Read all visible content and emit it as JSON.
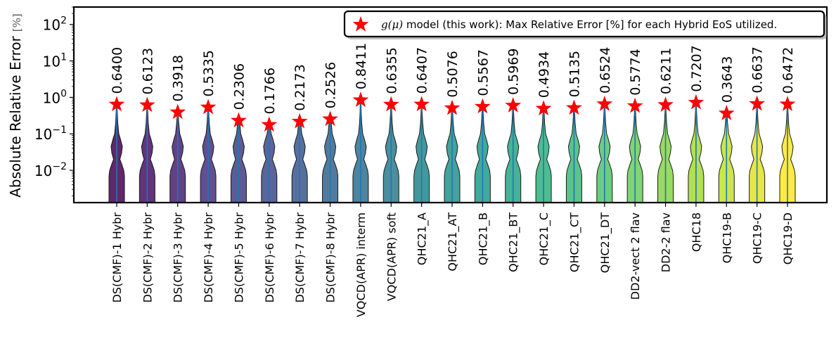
{
  "chart_data": {
    "type": "violin",
    "ylabel": "Absolute Relative Error",
    "ylabel_unit": "[%]",
    "yscale": "log",
    "ylim": [
      0.0013,
      300
    ],
    "y_ticks": [
      {
        "value": 0.01,
        "base": "10",
        "exp": "−2"
      },
      {
        "value": 0.1,
        "base": "10",
        "exp": "−1"
      },
      {
        "value": 1,
        "base": "10",
        "exp": "0"
      },
      {
        "value": 10,
        "base": "10",
        "exp": "1"
      },
      {
        "value": 100,
        "base": "10",
        "exp": "2"
      }
    ],
    "categories": [
      "DS(CMF)-1 Hybr",
      "DS(CMF)-2 Hybr",
      "DS(CMF)-3 Hybr",
      "DS(CMF)-4 Hybr",
      "DS(CMF)-5 Hybr",
      "DS(CMF)-6 Hybr",
      "DS(CMF)-7 Hybr",
      "DS(CMF)-8 Hybr",
      "VQCD(APR) interm",
      "VQCD(APR) soft",
      "QHC21_A",
      "QHC21_AT",
      "QHC21_B",
      "QHC21_BT",
      "QHC21_C",
      "QHC21_CT",
      "QHC21_DT",
      "DD2-vect 2 flav",
      "DD2-2 flav",
      "QHC18",
      "QHC19-B",
      "QHC19-C",
      "QHC19-D"
    ],
    "max_values": [
      0.64,
      0.6123,
      0.3918,
      0.5335,
      0.2306,
      0.1766,
      0.2173,
      0.2526,
      0.8411,
      0.6355,
      0.6407,
      0.5076,
      0.5567,
      0.5969,
      0.4934,
      0.5135,
      0.6524,
      0.5774,
      0.6211,
      0.7207,
      0.3643,
      0.6637,
      0.6472
    ],
    "value_labels": [
      "0.6400",
      "0.6123",
      "0.3918",
      "0.5335",
      "0.2306",
      "0.1766",
      "0.2173",
      "0.2526",
      "0.8411",
      "0.6355",
      "0.6407",
      "0.5076",
      "0.5567",
      "0.5969",
      "0.4934",
      "0.5135",
      "0.6524",
      "0.5774",
      "0.6211",
      "0.7207",
      "0.3643",
      "0.6637",
      "0.6472"
    ],
    "legend": {
      "math": "g(μ)",
      "text": " model (this work): Max Relative Error [%] for each Hybrid EoS utilized.",
      "position": "upper right"
    },
    "colors": {
      "marker": "#ff0000",
      "median_line": "#1f77b4",
      "violin_start": "#440154",
      "violin_end": "#fde725"
    }
  }
}
